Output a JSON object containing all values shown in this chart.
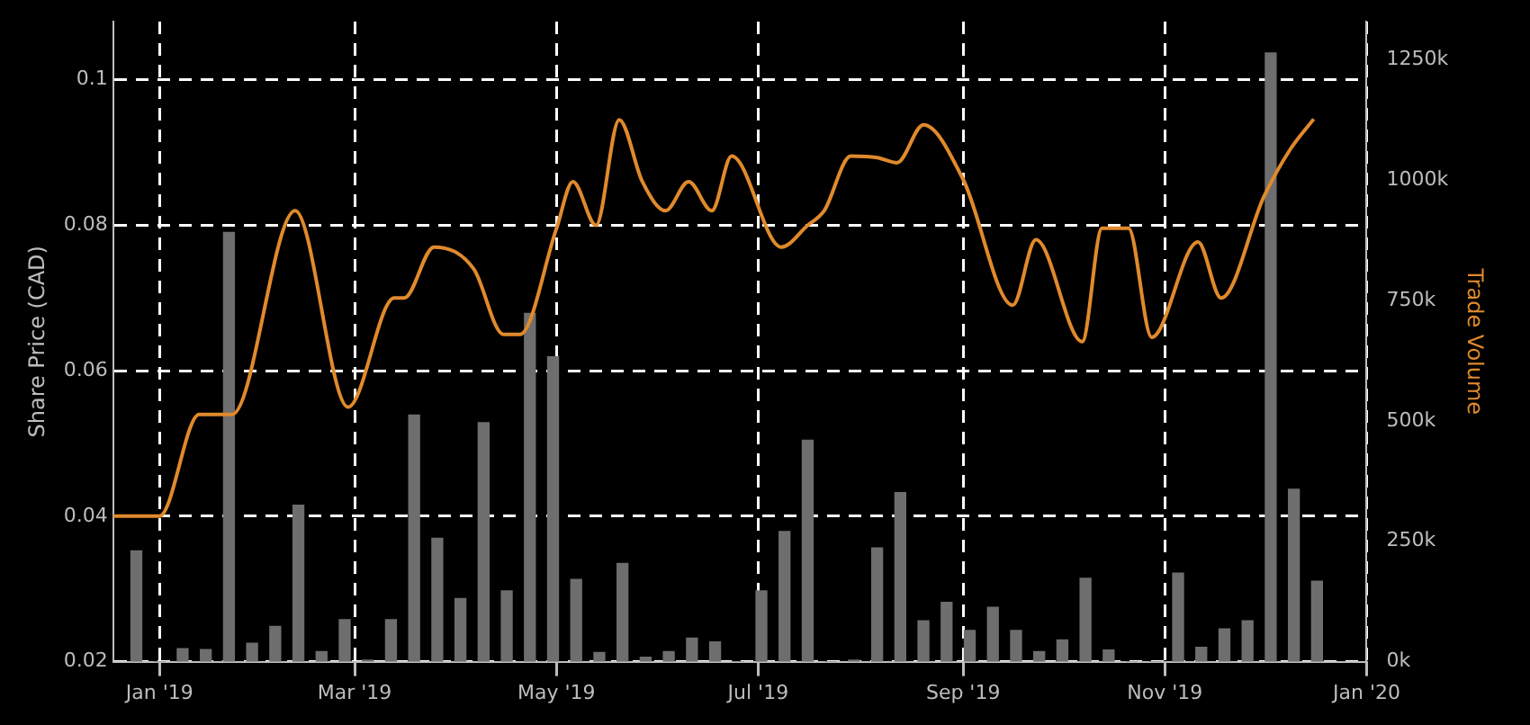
{
  "chart_data": {
    "type": "line",
    "ylabel": "Share Price (CAD)",
    "y2label": "Trade Volume",
    "xlim": [
      "2018-12-18",
      "2020-01-01"
    ],
    "xticks": [
      {
        "value": "2019-01-01",
        "label": "Jan '19"
      },
      {
        "value": "2019-03-01",
        "label": "Mar '19"
      },
      {
        "value": "2019-05-01",
        "label": "May '19"
      },
      {
        "value": "2019-07-01",
        "label": "Jul '19"
      },
      {
        "value": "2019-09-01",
        "label": "Sep '19"
      },
      {
        "value": "2019-11-01",
        "label": "Nov '19"
      },
      {
        "value": "2020-01-01",
        "label": "Jan '20"
      }
    ],
    "ylim": [
      0.02,
      0.108
    ],
    "yticks": [
      0.02,
      0.04,
      0.06,
      0.08,
      0.1
    ],
    "y2lim": [
      0,
      1329
    ],
    "y2ticks": [
      {
        "value": 0,
        "label": "0k"
      },
      {
        "value": 250,
        "label": "250k"
      },
      {
        "value": 500,
        "label": "500k"
      },
      {
        "value": 750,
        "label": "750k"
      },
      {
        "value": 1000,
        "label": "1000k"
      },
      {
        "value": 1250,
        "label": "1250k"
      }
    ],
    "grid": true,
    "marker": "none",
    "line_style": "solid",
    "series": [
      {
        "color": "#e08a2c",
        "x": [
          "2018-12-18",
          "2019-01-01",
          "2019-01-13",
          "2019-01-23",
          "2019-02-11",
          "2019-02-27",
          "2019-03-13",
          "2019-03-16",
          "2019-03-25",
          "2019-04-06",
          "2019-04-15",
          "2019-04-20",
          "2019-05-01",
          "2019-05-06",
          "2019-05-13",
          "2019-05-20",
          "2019-05-27",
          "2019-06-03",
          "2019-06-10",
          "2019-06-17",
          "2019-06-23",
          "2019-07-08",
          "2019-07-16",
          "2019-07-21",
          "2019-07-29",
          "2019-08-06",
          "2019-08-12",
          "2019-08-20",
          "2019-09-01",
          "2019-09-16",
          "2019-09-23",
          "2019-10-07",
          "2019-10-13",
          "2019-10-21",
          "2019-10-28",
          "2019-11-11",
          "2019-11-18",
          "2019-12-01",
          "2019-12-09",
          "2019-12-16"
        ],
        "values": [
          0.04,
          0.04,
          0.054,
          0.054,
          0.082,
          0.055,
          0.07,
          0.07,
          0.077,
          0.074,
          0.065,
          0.065,
          0.0795,
          0.086,
          0.08,
          0.0945,
          0.086,
          0.082,
          0.086,
          0.082,
          0.0895,
          0.077,
          0.08,
          0.082,
          0.0895,
          0.0893,
          0.0886,
          0.0938,
          0.0863,
          0.069,
          0.078,
          0.064,
          0.0796,
          0.0796,
          0.0646,
          0.0777,
          0.07,
          0.084,
          0.0905,
          0.0946
        ]
      },
      {
        "type": "bar",
        "axis": "y2",
        "color": "#6e6e6e",
        "x": [
          "2018-12-25",
          "2019-01-01",
          "2019-01-08",
          "2019-01-15",
          "2019-01-22",
          "2019-01-29",
          "2019-02-05",
          "2019-02-12",
          "2019-02-19",
          "2019-02-26",
          "2019-03-05",
          "2019-03-12",
          "2019-03-19",
          "2019-03-26",
          "2019-04-02",
          "2019-04-09",
          "2019-04-16",
          "2019-04-23",
          "2019-04-30",
          "2019-05-07",
          "2019-05-14",
          "2019-05-21",
          "2019-05-28",
          "2019-06-04",
          "2019-06-11",
          "2019-06-18",
          "2019-06-25",
          "2019-07-02",
          "2019-07-09",
          "2019-07-16",
          "2019-07-23",
          "2019-07-30",
          "2019-08-06",
          "2019-08-13",
          "2019-08-20",
          "2019-08-27",
          "2019-09-03",
          "2019-09-10",
          "2019-09-17",
          "2019-09-24",
          "2019-10-01",
          "2019-10-08",
          "2019-10-15",
          "2019-10-22",
          "2019-10-29",
          "2019-11-05",
          "2019-11-12",
          "2019-11-19",
          "2019-11-26",
          "2019-12-03",
          "2019-12-10",
          "2019-12-17"
        ],
        "values": [
          230,
          0,
          27,
          25,
          891,
          38,
          73,
          325,
          21,
          87,
          3,
          87,
          512,
          256,
          131,
          496,
          147,
          723,
          633,
          171,
          19,
          204,
          9,
          21,
          49,
          41,
          0,
          147,
          270,
          460,
          0,
          3,
          236,
          351,
          85,
          123,
          65,
          113,
          65,
          21,
          45,
          173,
          24,
          0,
          0,
          184,
          30,
          68,
          85,
          1264,
          358,
          167
        ]
      }
    ]
  }
}
